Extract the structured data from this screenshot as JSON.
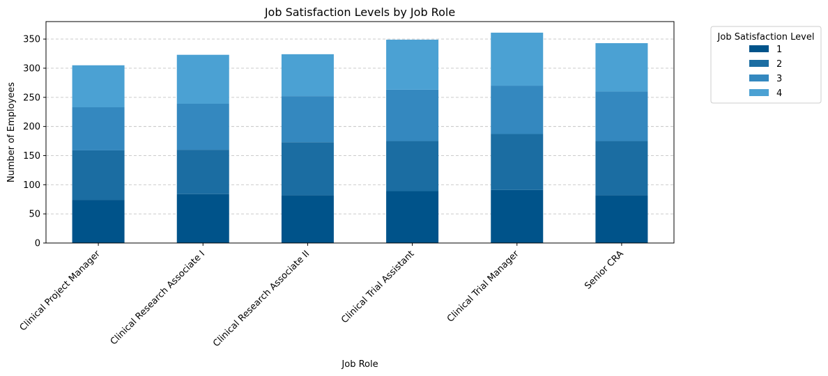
{
  "chart_data": {
    "type": "bar",
    "stacked": true,
    "title": "Job Satisfaction Levels by Job Role",
    "xlabel": "Job Role",
    "ylabel": "Number of Employees",
    "ylim": [
      0,
      380
    ],
    "yticks": [
      0,
      50,
      100,
      150,
      200,
      250,
      300,
      350
    ],
    "grid": "y-dashed",
    "categories": [
      "Clinical Project Manager",
      "Clinical Research Associate I",
      "Clinical Research Associate II",
      "Clinical Trial Assistant",
      "Clinical Trial Manager",
      "Senior CRA"
    ],
    "legend": {
      "title": "Job Satisfaction Level",
      "placement": "outside-top-right"
    },
    "series": [
      {
        "name": "1",
        "color": "#00538a",
        "values": [
          74,
          84,
          82,
          89,
          91,
          82
        ]
      },
      {
        "name": "2",
        "color": "#1b6da2",
        "values": [
          85,
          76,
          91,
          86,
          96,
          93
        ]
      },
      {
        "name": "3",
        "color": "#3488bf",
        "values": [
          74,
          79,
          79,
          88,
          83,
          85
        ]
      },
      {
        "name": "4",
        "color": "#4ba1d3",
        "values": [
          72,
          84,
          72,
          86,
          91,
          83
        ]
      }
    ]
  }
}
